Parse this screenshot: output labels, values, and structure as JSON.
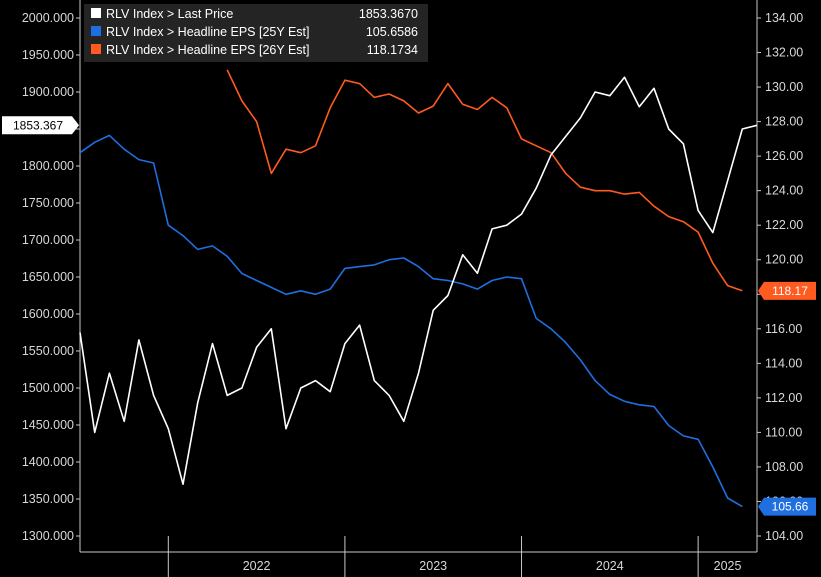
{
  "chart_data": {
    "type": "line",
    "x_range": [
      "2021-07",
      "2025-05"
    ],
    "x_ticks": [
      {
        "label": "2022",
        "date": "2022-01"
      },
      {
        "label": "2023",
        "date": "2023-01"
      },
      {
        "label": "2024",
        "date": "2024-01"
      },
      {
        "label": "2025",
        "date": "2025-01"
      }
    ],
    "y_left": {
      "range": [
        1300,
        2000
      ],
      "ticks": [
        "1300.000",
        "1350.000",
        "1400.000",
        "1450.000",
        "1500.000",
        "1550.000",
        "1600.000",
        "1650.000",
        "1700.000",
        "1750.000",
        "1800.000",
        "1850.000",
        "1900.000",
        "1950.000",
        "2000.000"
      ]
    },
    "y_right": {
      "range": [
        104,
        134
      ],
      "ticks": [
        "104.00",
        "106.00",
        "108.00",
        "110.00",
        "112.00",
        "114.00",
        "116.00",
        "118.00",
        "120.00",
        "122.00",
        "124.00",
        "126.00",
        "128.00",
        "130.00",
        "132.00",
        "134.00"
      ]
    },
    "grid": false,
    "legend_position": "top-left",
    "series": [
      {
        "name": "RLV Index > Last Price",
        "last_value": "1853.3670",
        "tag": "1853.367",
        "color": "#ffffff",
        "axis": "left",
        "points": [
          [
            "2021-07",
            1575
          ],
          [
            "2021-08",
            1440
          ],
          [
            "2021-09",
            1520
          ],
          [
            "2021-10",
            1455
          ],
          [
            "2021-11",
            1565
          ],
          [
            "2021-12",
            1490
          ],
          [
            "2022-01",
            1445
          ],
          [
            "2022-02",
            1370
          ],
          [
            "2022-03",
            1480
          ],
          [
            "2022-04",
            1560
          ],
          [
            "2022-05",
            1490
          ],
          [
            "2022-06",
            1500
          ],
          [
            "2022-07",
            1555
          ],
          [
            "2022-08",
            1580
          ],
          [
            "2022-09",
            1445
          ],
          [
            "2022-10",
            1500
          ],
          [
            "2022-11",
            1510
          ],
          [
            "2022-12",
            1495
          ],
          [
            "2023-01",
            1560
          ],
          [
            "2023-02",
            1585
          ],
          [
            "2023-03",
            1510
          ],
          [
            "2023-04",
            1490
          ],
          [
            "2023-05",
            1455
          ],
          [
            "2023-06",
            1520
          ],
          [
            "2023-07",
            1605
          ],
          [
            "2023-08",
            1625
          ],
          [
            "2023-09",
            1680
          ],
          [
            "2023-10",
            1655
          ],
          [
            "2023-11",
            1715
          ],
          [
            "2023-12",
            1720
          ],
          [
            "2024-01",
            1735
          ],
          [
            "2024-02",
            1770
          ],
          [
            "2024-03",
            1815
          ],
          [
            "2024-04",
            1840
          ],
          [
            "2024-05",
            1865
          ],
          [
            "2024-06",
            1900
          ],
          [
            "2024-07",
            1895
          ],
          [
            "2024-08",
            1920
          ],
          [
            "2024-09",
            1880
          ],
          [
            "2024-10",
            1905
          ],
          [
            "2024-11",
            1850
          ],
          [
            "2024-12",
            1830
          ],
          [
            "2025-01",
            1740
          ],
          [
            "2025-02",
            1710
          ],
          [
            "2025-03",
            1780
          ],
          [
            "2025-04",
            1850
          ],
          [
            "2025-05",
            1855
          ]
        ]
      },
      {
        "name": "RLV Index > Headline EPS [25Y Est]",
        "last_value": "105.6586",
        "tag": "105.66",
        "color": "#1f6fe0",
        "axis": "right",
        "points": [
          [
            "2021-07",
            126.2
          ],
          [
            "2021-08",
            126.8
          ],
          [
            "2021-09",
            127.2
          ],
          [
            "2021-10",
            126.4
          ],
          [
            "2021-11",
            125.8
          ],
          [
            "2021-12",
            125.6
          ],
          [
            "2022-01",
            122.0
          ],
          [
            "2022-02",
            121.4
          ],
          [
            "2022-03",
            120.6
          ],
          [
            "2022-04",
            120.8
          ],
          [
            "2022-05",
            120.2
          ],
          [
            "2022-06",
            119.2
          ],
          [
            "2022-07",
            118.8
          ],
          [
            "2022-08",
            118.4
          ],
          [
            "2022-09",
            118.0
          ],
          [
            "2022-10",
            118.2
          ],
          [
            "2022-11",
            118.0
          ],
          [
            "2022-12",
            118.3
          ],
          [
            "2023-01",
            119.5
          ],
          [
            "2023-02",
            119.6
          ],
          [
            "2023-03",
            119.7
          ],
          [
            "2023-04",
            120.0
          ],
          [
            "2023-05",
            120.1
          ],
          [
            "2023-06",
            119.6
          ],
          [
            "2023-07",
            118.9
          ],
          [
            "2023-08",
            118.8
          ],
          [
            "2023-09",
            118.6
          ],
          [
            "2023-10",
            118.3
          ],
          [
            "2023-11",
            118.8
          ],
          [
            "2023-12",
            119.0
          ],
          [
            "2024-01",
            118.9
          ],
          [
            "2024-02",
            116.6
          ],
          [
            "2024-03",
            116.0
          ],
          [
            "2024-04",
            115.2
          ],
          [
            "2024-05",
            114.2
          ],
          [
            "2024-06",
            113.0
          ],
          [
            "2024-07",
            112.2
          ],
          [
            "2024-08",
            111.8
          ],
          [
            "2024-09",
            111.6
          ],
          [
            "2024-10",
            111.5
          ],
          [
            "2024-11",
            110.4
          ],
          [
            "2024-12",
            109.8
          ],
          [
            "2025-01",
            109.6
          ],
          [
            "2025-02",
            108.0
          ],
          [
            "2025-03",
            106.2
          ],
          [
            "2025-04",
            105.7
          ]
        ]
      },
      {
        "name": "RLV Index > Headline EPS [26Y Est]",
        "last_value": "118.1734",
        "tag": "118.17",
        "color": "#ff5a1f",
        "axis": "right",
        "points": [
          [
            "2022-05",
            131.0
          ],
          [
            "2022-06",
            129.2
          ],
          [
            "2022-07",
            128.0
          ],
          [
            "2022-08",
            125.0
          ],
          [
            "2022-09",
            126.4
          ],
          [
            "2022-10",
            126.2
          ],
          [
            "2022-11",
            126.6
          ],
          [
            "2022-12",
            128.8
          ],
          [
            "2023-01",
            130.4
          ],
          [
            "2023-02",
            130.2
          ],
          [
            "2023-03",
            129.4
          ],
          [
            "2023-04",
            129.6
          ],
          [
            "2023-05",
            129.2
          ],
          [
            "2023-06",
            128.5
          ],
          [
            "2023-07",
            128.9
          ],
          [
            "2023-08",
            130.2
          ],
          [
            "2023-09",
            129.0
          ],
          [
            "2023-10",
            128.7
          ],
          [
            "2023-11",
            129.4
          ],
          [
            "2023-12",
            128.8
          ],
          [
            "2024-01",
            127.0
          ],
          [
            "2024-02",
            126.6
          ],
          [
            "2024-03",
            126.2
          ],
          [
            "2024-04",
            125.0
          ],
          [
            "2024-05",
            124.2
          ],
          [
            "2024-06",
            124.0
          ],
          [
            "2024-07",
            124.0
          ],
          [
            "2024-08",
            123.8
          ],
          [
            "2024-09",
            123.9
          ],
          [
            "2024-10",
            123.1
          ],
          [
            "2024-11",
            122.5
          ],
          [
            "2024-12",
            122.2
          ],
          [
            "2025-01",
            121.6
          ],
          [
            "2025-02",
            119.8
          ],
          [
            "2025-03",
            118.5
          ],
          [
            "2025-04",
            118.2
          ]
        ]
      }
    ]
  }
}
